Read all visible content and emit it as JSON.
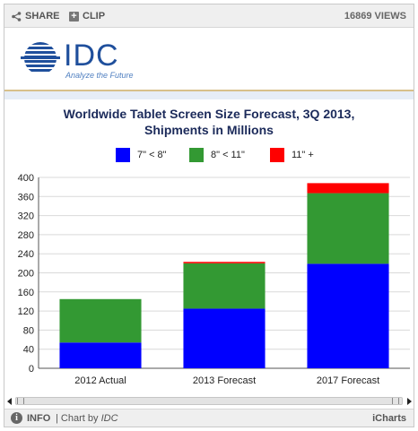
{
  "toolbar": {
    "share_label": "SHARE",
    "clip_label": "CLIP",
    "views_label": "16869 VIEWS"
  },
  "logo": {
    "name": "IDC",
    "tagline": "Analyze the Future",
    "brand_color": "#1f4f9c"
  },
  "footer": {
    "info_label": "INFO",
    "chart_by_prefix": "| Chart by",
    "chart_by_brand": "IDC",
    "platform": "iCharts"
  },
  "chart_data": {
    "type": "bar",
    "stacked": true,
    "title_line1": "Worldwide Tablet Screen Size Forecast, 3Q 2013,",
    "title_line2": "Shipments in Millions",
    "categories": [
      "2012 Actual",
      "2013 Forecast",
      "2017 Forecast"
    ],
    "series": [
      {
        "name": "7\" < 8\"",
        "color": "#0000ff",
        "values": [
          54,
          125,
          219
        ]
      },
      {
        "name": "8\" < 11\"",
        "color": "#339933",
        "values": [
          91,
          95,
          148
        ]
      },
      {
        "name": "11\" +",
        "color": "#ff0000",
        "values": [
          0,
          3,
          21
        ]
      }
    ],
    "ylim": [
      0,
      400
    ],
    "yticks": [
      0,
      40,
      80,
      120,
      160,
      200,
      240,
      280,
      320,
      360,
      400
    ],
    "grid": true,
    "legend_position": "top"
  }
}
